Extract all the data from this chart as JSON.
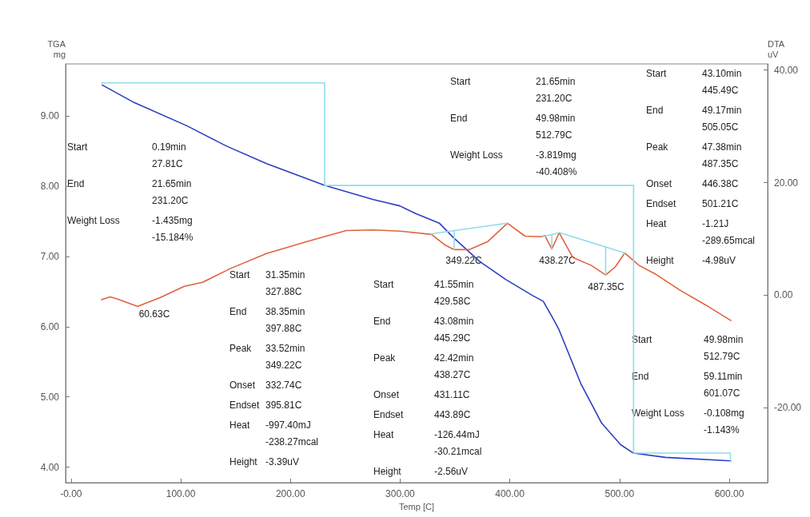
{
  "chart_data": {
    "type": "line",
    "xlabel": "Temp [C]",
    "ylabel": "TGA\nmg",
    "y2label": "DTA\nuV",
    "xlim": [
      -5,
      635
    ],
    "xticks": [
      {
        "value": 0,
        "label": "-0.00"
      },
      {
        "value": 100,
        "label": "100.00"
      },
      {
        "value": 200,
        "label": "200.00"
      },
      {
        "value": 300,
        "label": "300.00"
      },
      {
        "value": 400,
        "label": "400.00"
      },
      {
        "value": 500,
        "label": "500.00"
      },
      {
        "value": 600,
        "label": "600.00"
      }
    ],
    "ylim": [
      3.78,
      9.74
    ],
    "yticks": [
      {
        "value": 4,
        "label": "4.00"
      },
      {
        "value": 5,
        "label": "5.00"
      },
      {
        "value": 6,
        "label": "6.00"
      },
      {
        "value": 7,
        "label": "7.00"
      },
      {
        "value": 8,
        "label": "8.00"
      },
      {
        "value": 9,
        "label": "9.00"
      }
    ],
    "y2lim": [
      -33.3,
      41.1
    ],
    "y2ticks": [
      {
        "value": -20,
        "label": "-20.00"
      },
      {
        "value": 0,
        "label": "0.00"
      },
      {
        "value": 20,
        "label": "20.00"
      },
      {
        "value": 40,
        "label": "40.00"
      }
    ],
    "grid": false,
    "marker": "none",
    "series": [
      {
        "color": "#2a3fc0",
        "x": [
          28.4,
          57.5,
          105.5,
          141.8,
          178.2,
          231.3,
          275.6,
          299.6,
          314.2,
          336,
          348.4,
          372.4,
          396.4,
          421.1,
          430.5,
          440,
          445,
          464.7,
          483.6,
          501,
          512.7,
          541.8,
          601.5
        ],
        "values": [
          9.44,
          9.19,
          8.86,
          8.57,
          8.32,
          8.01,
          7.81,
          7.72,
          7.61,
          7.47,
          7.27,
          6.93,
          6.67,
          6.44,
          6.36,
          6.1,
          5.95,
          5.19,
          4.63,
          4.32,
          4.2,
          4.14,
          4.09
        ]
      },
      {
        "color": "#e0623e",
        "axis": "y2",
        "x": [
          27.8,
          35.6,
          42.9,
          60.63,
          81.5,
          103.3,
          120,
          144.7,
          178.2,
          214.5,
          250.9,
          275.6,
          299.6,
          328.7,
          341.1,
          349.22,
          362.9,
          379.6,
          397.8,
          413.8,
          428.4,
          432,
          438.27,
          445,
          457.5,
          474.2,
          487.35,
          496,
          504.7,
          517.8,
          532.4,
          554.2,
          578.2,
          601.5
        ],
        "values": [
          -0.8,
          -0.3,
          -0.7,
          -2,
          -0.4,
          1.6,
          2.3,
          4.7,
          7.4,
          9.5,
          11.5,
          11.6,
          11.4,
          10.8,
          8.9,
          8.1,
          8.1,
          9.5,
          12.8,
          10.5,
          10.4,
          10.6,
          8.2,
          11.1,
          6.7,
          5.3,
          3.6,
          5,
          7.5,
          5.3,
          3.8,
          1,
          -1.7,
          -4.5
        ]
      },
      {
        "color": "#8fdcea",
        "x": [
          27.81,
          231.2,
          231.2,
          512.79,
          512.79,
          601.07,
          601.07
        ],
        "values": [
          9.47,
          9.47,
          8.01,
          8.01,
          4.2,
          4.2,
          4.09
        ]
      },
      {
        "color": "#8fdcea",
        "axis": "y2",
        "x": [
          327.88,
          397.88
        ],
        "values": [
          10.9,
          12.8
        ]
      },
      {
        "color": "#8fdcea",
        "axis": "y2",
        "x": [
          349.22,
          349.22
        ],
        "values": [
          11.5,
          8.1
        ]
      },
      {
        "color": "#8fdcea",
        "axis": "y2",
        "x": [
          429.58,
          445.29
        ],
        "values": [
          10.4,
          11.1
        ]
      },
      {
        "color": "#8fdcea",
        "axis": "y2",
        "x": [
          438.27,
          438.27
        ],
        "values": [
          10.8,
          8.2
        ]
      },
      {
        "color": "#8fdcea",
        "axis": "y2",
        "x": [
          445.49,
          505.05
        ],
        "values": [
          11.1,
          7.5
        ]
      },
      {
        "color": "#8fdcea",
        "axis": "y2",
        "x": [
          487.35,
          487.35
        ],
        "values": [
          8.6,
          3.6
        ]
      }
    ],
    "annotations": [
      "Start",
      "0.19min\n27.81C",
      "End",
      "21.65min\n231.20C",
      "Weight Loss",
      "-1.435mg\n-15.184%",
      "Start",
      "21.65min\n231.20C",
      "End",
      "49.98min\n512.79C",
      "Weight Loss",
      "-3.819mg\n-40.408%",
      "Start",
      "43.10min\n445.49C",
      "End",
      "49.17min\n505.05C",
      "Peak",
      "47.38min\n487.35C",
      "Onset",
      "446.38C",
      "Endset",
      "501.21C",
      "Heat",
      "-1.21J\n-289.65mcal",
      "Height",
      "-4.98uV",
      "Start",
      "31.35min\n327.88C",
      "End",
      "38.35min\n397.88C",
      "Peak",
      "33.52min\n349.22C",
      "Onset",
      "332.74C",
      "Endset",
      "395.81C",
      "Heat",
      "-997.40mJ\n-238.27mcal",
      "Height",
      "-3.39uV",
      "Start",
      "41.55min\n429.58C",
      "End",
      "43.08min\n445.29C",
      "Peak",
      "42.42min\n438.27C",
      "Onset",
      "431.11C",
      "Endset",
      "443.89C",
      "Heat",
      "-126.44mJ\n-30.21mcal",
      "Height",
      "-2.56uV",
      "Start",
      "49.98min\n512.79C",
      "End",
      "59.11min\n601.07C",
      "Weight Loss",
      "-0.108mg\n-1.143%",
      "60.63C",
      "349.22C",
      "438.27C",
      "487.35C"
    ]
  }
}
